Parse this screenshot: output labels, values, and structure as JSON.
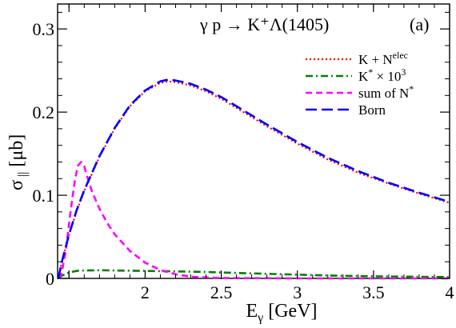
{
  "chart_data": {
    "type": "line",
    "title": "γ p → K⁺Λ(1405)",
    "panel_label": "(a)",
    "xlabel": "Eγ [GeV]",
    "ylabel": "σ∥ [μb]",
    "xlim": [
      1.425,
      4.0
    ],
    "ylim": [
      0,
      0.33
    ],
    "x_ticks": [
      {
        "value": 1.5,
        "label": ""
      },
      {
        "value": 2,
        "label": "2"
      },
      {
        "value": 2.5,
        "label": "2.5"
      },
      {
        "value": 3,
        "label": "3"
      },
      {
        "value": 3.5,
        "label": "3.5"
      },
      {
        "value": 4,
        "label": "4"
      }
    ],
    "y_ticks": [
      {
        "value": 0,
        "label": "0"
      },
      {
        "value": 0.1,
        "label": "0.1"
      },
      {
        "value": 0.2,
        "label": "0.2"
      },
      {
        "value": 0.3,
        "label": "0.3"
      }
    ],
    "grid": false,
    "legend_position": "top-right",
    "series": [
      {
        "name": "K + N^elec",
        "color": "#ff0000",
        "dash": "dotted",
        "x": [
          1.43,
          1.45,
          1.5,
          1.55,
          1.6,
          1.7,
          1.8,
          1.9,
          2.0,
          2.1,
          2.15,
          2.2,
          2.3,
          2.4,
          2.5,
          2.6,
          2.8,
          3.0,
          3.2,
          3.4,
          3.6,
          3.8,
          4.0
        ],
        "y": [
          0.0,
          0.018,
          0.052,
          0.081,
          0.105,
          0.146,
          0.18,
          0.207,
          0.225,
          0.235,
          0.237,
          0.236,
          0.232,
          0.225,
          0.216,
          0.205,
          0.183,
          0.162,
          0.143,
          0.127,
          0.114,
          0.102,
          0.091
        ]
      },
      {
        "name": "K* × 10^3",
        "color": "#008000",
        "dash": "dashdot",
        "x": [
          1.43,
          1.45,
          1.5,
          1.55,
          1.6,
          1.7,
          1.8,
          2.0,
          2.2,
          2.4,
          2.6,
          2.8,
          3.0,
          3.2,
          3.5,
          4.0
        ],
        "y": [
          0.0,
          0.003,
          0.007,
          0.009,
          0.0095,
          0.0098,
          0.0095,
          0.009,
          0.0085,
          0.0077,
          0.0065,
          0.0055,
          0.0045,
          0.0035,
          0.0025,
          0.0015
        ]
      },
      {
        "name": "sum of N*",
        "color": "#ff00ff",
        "dash": "dashed",
        "x": [
          1.43,
          1.45,
          1.48,
          1.51,
          1.54,
          1.56,
          1.58,
          1.6,
          1.62,
          1.65,
          1.7,
          1.75,
          1.8,
          1.9,
          2.0,
          2.1,
          2.2,
          2.3,
          2.5,
          3.0,
          4.0
        ],
        "y": [
          0.0,
          0.005,
          0.035,
          0.08,
          0.12,
          0.136,
          0.14,
          0.135,
          0.122,
          0.105,
          0.084,
          0.067,
          0.053,
          0.033,
          0.019,
          0.01,
          0.005,
          0.002,
          0.0005,
          0.0,
          0.0
        ]
      },
      {
        "name": "Born",
        "color": "#0000ff",
        "dash": "longdash",
        "x": [
          1.43,
          1.45,
          1.5,
          1.55,
          1.6,
          1.7,
          1.8,
          1.9,
          2.0,
          2.1,
          2.15,
          2.2,
          2.3,
          2.4,
          2.5,
          2.6,
          2.8,
          3.0,
          3.2,
          3.4,
          3.6,
          3.8,
          4.0
        ],
        "y": [
          0.0,
          0.018,
          0.053,
          0.082,
          0.106,
          0.147,
          0.181,
          0.208,
          0.226,
          0.237,
          0.239,
          0.238,
          0.234,
          0.227,
          0.218,
          0.207,
          0.185,
          0.164,
          0.145,
          0.129,
          0.115,
          0.103,
          0.092
        ]
      }
    ]
  }
}
